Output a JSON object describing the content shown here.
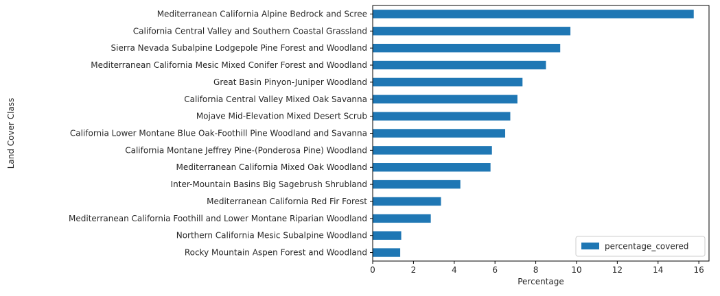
{
  "chart_data": {
    "type": "bar",
    "orientation": "horizontal",
    "categories": [
      "Mediterranean California Alpine Bedrock and Scree",
      "California Central Valley and Southern Coastal Grassland",
      "Sierra Nevada Subalpine Lodgepole Pine Forest and Woodland",
      "Mediterranean California Mesic Mixed Conifer Forest and Woodland",
      "Great Basin Pinyon-Juniper Woodland",
      "California Central Valley Mixed Oak Savanna",
      "Mojave Mid-Elevation Mixed Desert Scrub",
      "California Lower Montane Blue Oak-Foothill Pine Woodland and Savanna",
      "California Montane Jeffrey Pine-(Ponderosa Pine) Woodland",
      "Mediterranean California Mixed Oak Woodland",
      "Inter-Mountain Basins Big Sagebrush Shrubland",
      "Mediterranean California Red Fir Forest",
      "Mediterranean California Foothill and Lower Montane Riparian Woodland",
      "Northern California Mesic Subalpine Woodland",
      "Rocky Mountain Aspen Forest and Woodland"
    ],
    "series": [
      {
        "name": "percentage_covered",
        "color": "#1f77b4",
        "values": [
          15.75,
          9.7,
          9.2,
          8.5,
          7.35,
          7.1,
          6.75,
          6.5,
          5.85,
          5.78,
          4.3,
          3.35,
          2.85,
          1.4,
          1.35
        ]
      }
    ],
    "xlabel": "Percentage",
    "ylabel": "Land Cover Class",
    "xlim": [
      0,
      16.5
    ],
    "xticks": [
      0,
      2,
      4,
      6,
      8,
      10,
      12,
      14,
      16
    ],
    "grid": false,
    "legend": "lower-right"
  }
}
